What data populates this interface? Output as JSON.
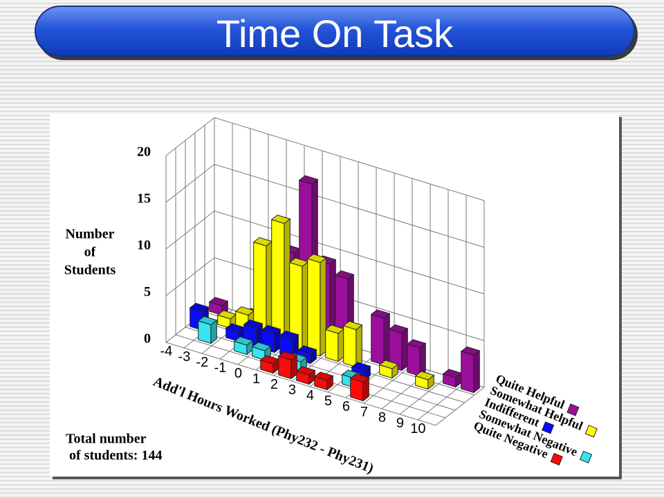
{
  "slide_title": "Time On Task",
  "chart_data": {
    "type": "bar3d",
    "ylabel": [
      "Number",
      "of",
      "Students"
    ],
    "xlabel": "Add'l Hours Worked (Phy232 - Phy231)",
    "note": [
      "Total number",
      "of students: 144"
    ],
    "categories": [
      -4,
      -3,
      -2,
      -1,
      0,
      1,
      2,
      3,
      4,
      5,
      6,
      7,
      8,
      9,
      10
    ],
    "ylim": [
      0,
      20
    ],
    "yticks": [
      0,
      5,
      10,
      15,
      20
    ],
    "grid": true,
    "series": [
      {
        "name": "Quite Helpful",
        "color": "#9b0f9b",
        "values": [
          1,
          0,
          1,
          0,
          9,
          17,
          9,
          8,
          0,
          5,
          4,
          3,
          0,
          1,
          4
        ]
      },
      {
        "name": "Somewhat Helpful",
        "color": "#ffff00",
        "values": [
          0,
          1,
          2,
          10,
          13,
          9,
          10,
          3,
          4,
          0,
          1,
          0,
          1,
          0,
          0
        ]
      },
      {
        "name": "Indifferent",
        "color": "#0a0aff",
        "values": [
          2,
          0,
          1,
          2,
          2,
          2,
          1,
          0,
          0,
          1,
          0,
          0,
          0,
          0,
          0
        ]
      },
      {
        "name": "Somewhat Negative",
        "color": "#33e6f0",
        "values": [
          0,
          2,
          0,
          1,
          1,
          0,
          1,
          0,
          0,
          1,
          0,
          0,
          0,
          0,
          0
        ]
      },
      {
        "name": "Quite Negative",
        "color": "#ff0a0a",
        "values": [
          0,
          0,
          0,
          0,
          0,
          1,
          2,
          1,
          1,
          0,
          2,
          0,
          0,
          0,
          0
        ]
      }
    ]
  }
}
